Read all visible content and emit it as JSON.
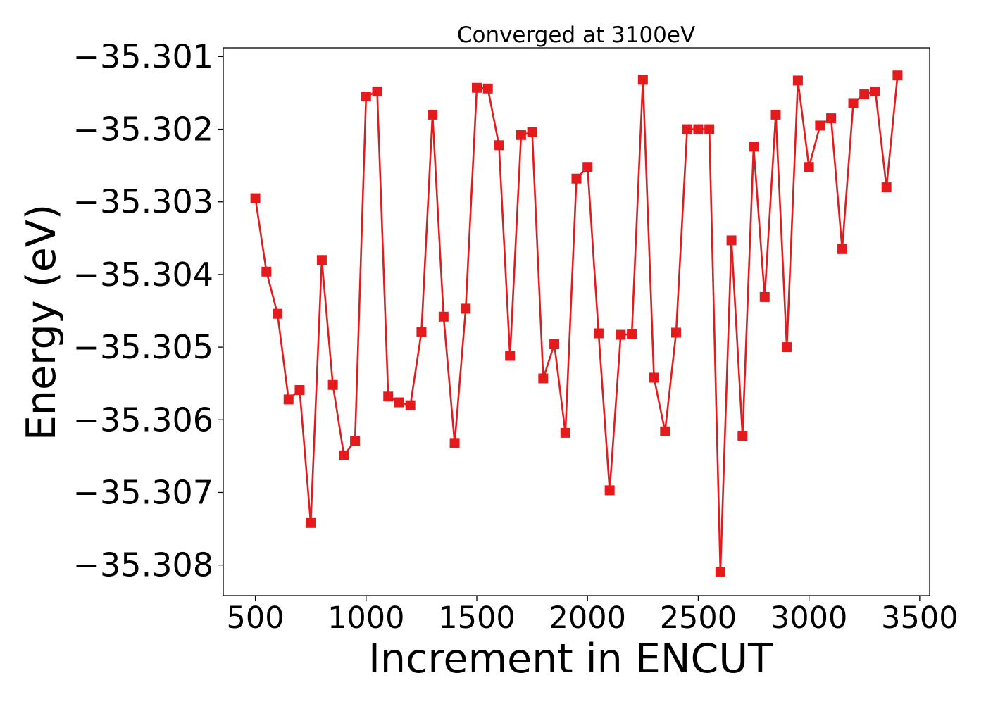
{
  "chart_data": {
    "type": "line",
    "title": "Converged at 3100eV",
    "xlabel": "Increment in ENCUT",
    "ylabel": "Energy (eV)",
    "xlim": [
      355,
      3545
    ],
    "ylim": [
      -35.30842,
      -35.30088
    ],
    "x_ticks": [
      500,
      1000,
      1500,
      2000,
      2500,
      3000,
      3500
    ],
    "x_tick_labels": [
      "500",
      "1000",
      "1500",
      "2000",
      "2500",
      "3000",
      "3500"
    ],
    "y_ticks": [
      -35.301,
      -35.302,
      -35.303,
      -35.304,
      -35.305,
      -35.306,
      -35.307,
      -35.308
    ],
    "y_tick_labels": [
      "−35.301",
      "−35.302",
      "−35.303",
      "−35.304",
      "−35.305",
      "−35.306",
      "−35.307",
      "−35.308"
    ],
    "grid": false,
    "series": [
      {
        "color": "#e41a1c",
        "marker": "square",
        "x": [
          500,
          550,
          600,
          650,
          700,
          750,
          800,
          850,
          900,
          950,
          1000,
          1050,
          1100,
          1150,
          1200,
          1250,
          1300,
          1350,
          1400,
          1450,
          1500,
          1550,
          1600,
          1650,
          1700,
          1750,
          1800,
          1850,
          1900,
          1950,
          2000,
          2050,
          2100,
          2150,
          2200,
          2250,
          2300,
          2350,
          2400,
          2450,
          2500,
          2550,
          2600,
          2650,
          2700,
          2750,
          2800,
          2850,
          2900,
          2950,
          3000,
          3050,
          3100,
          3150,
          3200,
          3250,
          3300,
          3350,
          3400
        ],
        "y": [
          -35.30295,
          -35.30396,
          -35.30454,
          -35.30572,
          -35.30559,
          -35.30742,
          -35.3038,
          -35.30552,
          -35.30649,
          -35.30629,
          -35.30155,
          -35.30148,
          -35.30568,
          -35.30576,
          -35.3058,
          -35.30479,
          -35.3018,
          -35.30458,
          -35.30632,
          -35.30447,
          -35.30143,
          -35.30144,
          -35.30222,
          -35.30512,
          -35.30208,
          -35.30204,
          -35.30543,
          -35.30496,
          -35.30618,
          -35.30268,
          -35.30252,
          -35.30481,
          -35.30697,
          -35.30483,
          -35.30482,
          -35.30132,
          -35.30542,
          -35.30616,
          -35.3048,
          -35.302,
          -35.302,
          -35.302,
          -35.30809,
          -35.30353,
          -35.30622,
          -35.30224,
          -35.30431,
          -35.3018,
          -35.305,
          -35.30133,
          -35.30252,
          -35.30195,
          -35.30185,
          -35.30365,
          -35.30164,
          -35.30152,
          -35.30148,
          -35.3028,
          -35.30126
        ]
      }
    ]
  }
}
